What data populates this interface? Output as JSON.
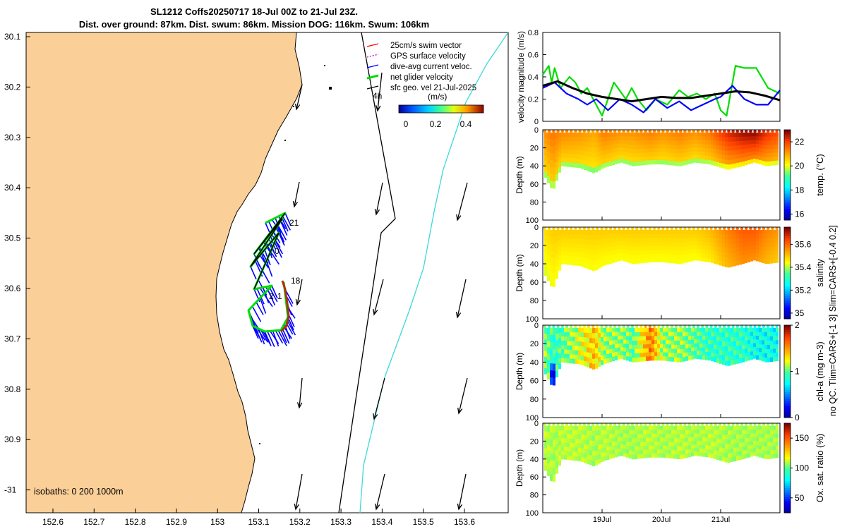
{
  "header": {
    "line1": "SL1212 Coffs20250717 18-Jul 00Z to 21-Jul 23Z.",
    "line2": "Dist. over ground: 87km. Dist. swum: 86km. Mission DOG: 116km. Swum: 106km"
  },
  "map": {
    "x_ticks": [
      "152.6",
      "152.7",
      "152.8",
      "152.9",
      "153",
      "153.1",
      "153.2",
      "153.3",
      "153.4",
      "153.5",
      "153.6"
    ],
    "y_ticks": [
      "30.1",
      "30.2",
      "30.3",
      "30.4",
      "30.5",
      "30.6",
      "30.7",
      "30.8",
      "30.9",
      "-31"
    ],
    "legend": [
      "25cm/s swim vector",
      "GPS surface velocity",
      "dive-avg current veloc.",
      "net glider velocity",
      "sfc geo. vel 21-Jul-2025"
    ],
    "legend_colors": [
      "#ff0000",
      "#cc00cc",
      "#0000ff",
      "#00dd00",
      "#000000"
    ],
    "colorbar_label": "(m/s)",
    "colorbar_ticks": [
      "0",
      "0.2",
      "0.4"
    ],
    "isobaths": "isobaths: 0   200   1000m",
    "annotations": [
      "4h",
      "21",
      "0",
      "18",
      "2",
      "1"
    ],
    "land_color": "#fbcf98"
  },
  "chart_data": [
    {
      "type": "line",
      "ylabel": "velocity magnitude (m/s)",
      "ylim": [
        0,
        0.8
      ],
      "y_ticks": [
        "0",
        "0.2",
        "0.4",
        "0.6",
        "0.8"
      ],
      "x_ticks": [
        "19Jul",
        "20Jul",
        "21Jul"
      ],
      "series": [
        {
          "name": "net glider velocity",
          "color": "#00dd00",
          "x": [
            18.0,
            18.1,
            18.15,
            18.2,
            18.3,
            18.45,
            18.55,
            18.65,
            18.75,
            18.9,
            19.0,
            19.2,
            19.4,
            19.5,
            19.6,
            19.75,
            19.9,
            20.1,
            20.3,
            20.45,
            20.6,
            20.75,
            20.9,
            21.0,
            21.1,
            21.25,
            21.4,
            21.6,
            21.8,
            22.0
          ],
          "values": [
            0.42,
            0.5,
            0.35,
            0.48,
            0.3,
            0.4,
            0.35,
            0.25,
            0.3,
            0.15,
            0.05,
            0.35,
            0.2,
            0.3,
            0.2,
            0.1,
            0.2,
            0.15,
            0.28,
            0.22,
            0.25,
            0.2,
            0.25,
            0.1,
            0.05,
            0.5,
            0.48,
            0.48,
            0.3,
            0.25
          ]
        },
        {
          "name": "dive-avg current veloc.",
          "color": "#0000ff",
          "x": [
            18.0,
            18.2,
            18.4,
            18.6,
            18.75,
            18.9,
            19.1,
            19.3,
            19.5,
            19.7,
            19.9,
            20.1,
            20.3,
            20.5,
            20.7,
            20.9,
            21.0,
            21.2,
            21.4,
            21.6,
            21.8,
            22.0
          ],
          "values": [
            0.3,
            0.35,
            0.25,
            0.2,
            0.15,
            0.2,
            0.1,
            0.2,
            0.15,
            0.08,
            0.2,
            0.12,
            0.18,
            0.1,
            0.15,
            0.2,
            0.22,
            0.32,
            0.2,
            0.15,
            0.15,
            0.28
          ]
        },
        {
          "name": "sfc geo. vel",
          "color": "#000000",
          "x": [
            18.0,
            18.25,
            18.5,
            18.75,
            19.0,
            19.25,
            19.5,
            19.75,
            20.0,
            20.25,
            20.5,
            20.75,
            21.0,
            21.25,
            21.5,
            21.75,
            22.0
          ],
          "values": [
            0.32,
            0.36,
            0.3,
            0.25,
            0.22,
            0.2,
            0.18,
            0.2,
            0.22,
            0.21,
            0.21,
            0.23,
            0.25,
            0.27,
            0.26,
            0.23,
            0.19
          ]
        }
      ]
    },
    {
      "type": "heatmap",
      "cbar_label": "temp. (°C)",
      "ylabel": "Depth (m)",
      "ylim": [
        100,
        0
      ],
      "y_ticks": [
        "0",
        "20",
        "40",
        "60",
        "80",
        "100"
      ],
      "clim": [
        15.5,
        23
      ],
      "cbar_ticks": [
        "16",
        "18",
        "20",
        "22"
      ],
      "x_days": [
        18.0,
        18.15,
        18.3,
        18.6,
        18.85,
        19.0,
        19.3,
        19.5,
        19.8,
        20.0,
        20.3,
        20.55,
        20.8,
        21.1,
        21.35,
        21.55,
        21.75,
        22.0
      ],
      "bottom_depth": [
        50,
        68,
        40,
        42,
        48,
        42,
        36,
        40,
        38,
        38,
        40,
        36,
        38,
        44,
        40,
        36,
        40,
        38
      ],
      "surface_value": [
        21.2,
        21.5,
        21.3,
        21.2,
        21.0,
        21.4,
        21.2,
        21.2,
        21.4,
        21.2,
        21.4,
        21.2,
        21.5,
        22.3,
        22.7,
        22.8,
        22.2,
        21.8
      ]
    },
    {
      "type": "heatmap",
      "cbar_label": "salinity",
      "ylabel": "Depth (m)",
      "ylim": [
        100,
        0
      ],
      "y_ticks": [
        "0",
        "20",
        "40",
        "60",
        "80",
        "100"
      ],
      "clim": [
        34.95,
        35.75
      ],
      "cbar_ticks": [
        "35",
        "35.2",
        "35.4",
        "35.6"
      ],
      "x_days": [
        18.0,
        18.15,
        18.3,
        18.6,
        18.85,
        19.0,
        19.3,
        19.5,
        19.8,
        20.0,
        20.3,
        20.55,
        20.8,
        21.1,
        21.35,
        21.55,
        21.75,
        22.0
      ],
      "bottom_depth": [
        50,
        68,
        40,
        42,
        48,
        42,
        36,
        40,
        38,
        38,
        40,
        36,
        38,
        44,
        40,
        36,
        40,
        38
      ],
      "surface_value": [
        35.48,
        35.5,
        35.5,
        35.5,
        35.5,
        35.5,
        35.5,
        35.5,
        35.5,
        35.5,
        35.5,
        35.5,
        35.52,
        35.58,
        35.62,
        35.62,
        35.58,
        35.55
      ]
    },
    {
      "type": "heatmap",
      "cbar_label": "chl-a (mg m-3)",
      "ylabel": "Depth (m)",
      "ylim": [
        100,
        0
      ],
      "y_ticks": [
        "0",
        "20",
        "40",
        "60",
        "80",
        "100"
      ],
      "clim": [
        0,
        2
      ],
      "cbar_ticks": [
        "0",
        "1",
        "2"
      ],
      "x_days": [
        18.0,
        18.15,
        18.3,
        18.6,
        18.85,
        19.0,
        19.3,
        19.5,
        19.8,
        20.0,
        20.3,
        20.55,
        20.8,
        21.1,
        21.35,
        21.55,
        21.75,
        22.0
      ],
      "bottom_depth": [
        50,
        68,
        40,
        42,
        48,
        42,
        36,
        40,
        38,
        38,
        40,
        36,
        38,
        44,
        40,
        36,
        40,
        38
      ],
      "surface_value": [
        1.1,
        0.9,
        1.0,
        1.2,
        1.4,
        1.1,
        1.1,
        1.0,
        1.6,
        1.1,
        1.1,
        1.0,
        0.9,
        0.9,
        0.9,
        0.8,
        0.8,
        0.8
      ]
    },
    {
      "type": "heatmap",
      "cbar_label": "Ox. sat. ratio (%)",
      "ylabel": "Depth (m)",
      "ylim": [
        100,
        0
      ],
      "y_ticks": [
        "0",
        "20",
        "40",
        "60",
        "80",
        "100"
      ],
      "clim": [
        25,
        175
      ],
      "cbar_ticks": [
        "50",
        "100",
        "150"
      ],
      "x_days": [
        18.0,
        18.15,
        18.3,
        18.6,
        18.85,
        19.0,
        19.3,
        19.5,
        19.8,
        20.0,
        20.3,
        20.55,
        20.8,
        21.1,
        21.35,
        21.55,
        21.75,
        22.0
      ],
      "bottom_depth": [
        50,
        68,
        40,
        42,
        48,
        42,
        36,
        40,
        38,
        38,
        40,
        36,
        38,
        44,
        40,
        36,
        40,
        38
      ],
      "surface_value": [
        112,
        110,
        112,
        112,
        110,
        112,
        110,
        110,
        112,
        110,
        112,
        110,
        112,
        110,
        110,
        110,
        110,
        110
      ]
    }
  ],
  "right_note": "no QC. Tlim=CARS+[-1 3] Slim=CARS+[-0.4 0.2]"
}
